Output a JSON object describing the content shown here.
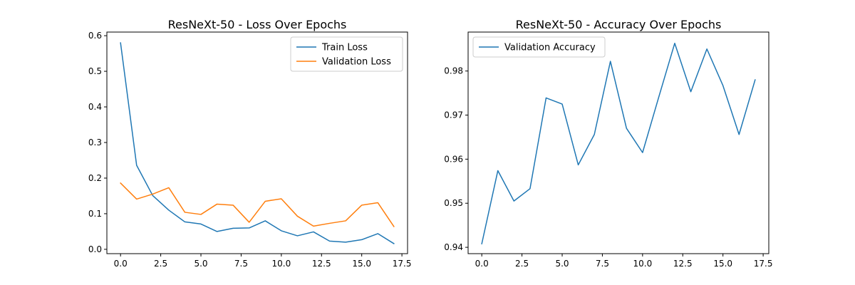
{
  "chart_data": [
    {
      "type": "line",
      "title": "ResNeXt-50 - Loss Over Epochs",
      "xlabel": "",
      "ylabel": "",
      "x": [
        0,
        1,
        2,
        3,
        4,
        5,
        6,
        7,
        8,
        9,
        10,
        11,
        12,
        13,
        14,
        15,
        16,
        17
      ],
      "xlim": [
        -0.85,
        17.85
      ],
      "ylim": [
        -0.0122,
        0.6102
      ],
      "xticks": [
        "0.0",
        "2.5",
        "5.0",
        "7.5",
        "10.0",
        "12.5",
        "15.0",
        "17.5"
      ],
      "yticks": [
        "0.0",
        "0.1",
        "0.2",
        "0.3",
        "0.4",
        "0.5",
        "0.6"
      ],
      "grid": false,
      "legend": "upper right",
      "series": [
        {
          "name": "Train Loss",
          "color": "#1f77b4",
          "values": [
            0.58,
            0.236,
            0.151,
            0.11,
            0.077,
            0.071,
            0.05,
            0.059,
            0.06,
            0.08,
            0.052,
            0.038,
            0.049,
            0.023,
            0.02,
            0.027,
            0.044,
            0.016
          ]
        },
        {
          "name": "Validation Loss",
          "color": "#ff7f0e",
          "values": [
            0.186,
            0.141,
            0.155,
            0.173,
            0.104,
            0.098,
            0.127,
            0.124,
            0.076,
            0.135,
            0.142,
            0.093,
            0.065,
            0.073,
            0.08,
            0.124,
            0.131,
            0.064
          ]
        }
      ]
    },
    {
      "type": "line",
      "title": "ResNeXt-50 - Accuracy Over Epochs",
      "xlabel": "",
      "ylabel": "",
      "x": [
        0,
        1,
        2,
        3,
        4,
        5,
        6,
        7,
        8,
        9,
        10,
        11,
        12,
        13,
        14,
        15,
        16,
        17
      ],
      "xlim": [
        -0.85,
        17.85
      ],
      "ylim": [
        0.93856,
        0.98884
      ],
      "xticks": [
        "0.0",
        "2.5",
        "5.0",
        "7.5",
        "10.0",
        "12.5",
        "15.0",
        "17.5"
      ],
      "yticks": [
        "0.94",
        "0.95",
        "0.96",
        "0.97",
        "0.98"
      ],
      "grid": false,
      "legend": "upper left",
      "series": [
        {
          "name": "Validation Accuracy",
          "color": "#1f77b4",
          "values": [
            0.9408,
            0.9574,
            0.9505,
            0.9533,
            0.9739,
            0.9725,
            0.9587,
            0.9656,
            0.9822,
            0.967,
            0.9615,
            0.974,
            0.9863,
            0.9753,
            0.985,
            0.9767,
            0.9656,
            0.978
          ]
        }
      ]
    }
  ]
}
